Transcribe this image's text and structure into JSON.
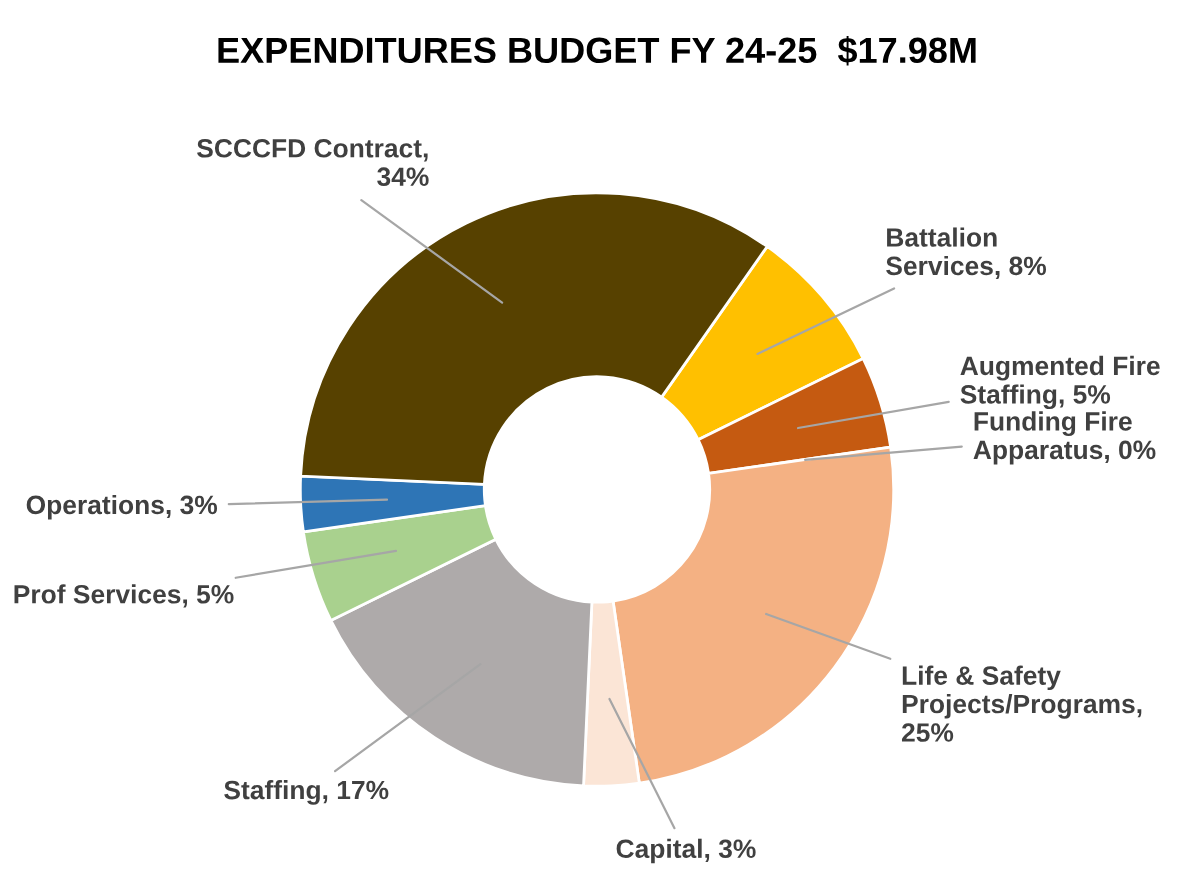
{
  "chart_data": {
    "type": "donut",
    "title": "EXPENDITURES BUDGET FY 24-25  $17.98M",
    "categories": [
      "Battalion Services, 8%",
      "Augmented Fire Staffing, 5%",
      "Funding Fire Apparatus, 0%",
      "Life & Safety Projects/Programs, 25%",
      "Capital, 3%",
      "Staffing, 17%",
      "Prof Services, 5%",
      "Operations, 3%",
      "SCCCFD Contract, 34%"
    ],
    "values": [
      8,
      5,
      0,
      25,
      3,
      17,
      5,
      3,
      34
    ],
    "colors": [
      "#ffc000",
      "#c55a11",
      "#7f7f7f",
      "#f4b183",
      "#fbe5d6",
      "#aeaaaa",
      "#a9d18e",
      "#2e75b6",
      "#574100"
    ],
    "legend": false
  }
}
